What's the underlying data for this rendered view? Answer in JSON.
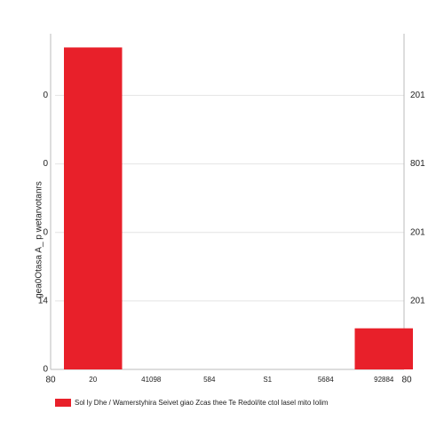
{
  "chart_data": {
    "type": "bar",
    "y_label": "gea0Otasa A_ p wetarvotanrs",
    "categories": [
      "20",
      "41098",
      "584",
      "S1",
      "5684",
      "92884"
    ],
    "x_end_labels": [
      "80",
      "80"
    ],
    "series": [
      {
        "name": "Sol ly Dhe / Wamerstyhira Seivet giao Zcas thee Te Redol/ite ctol lasel mito Iolim",
        "color": "#e8202a",
        "values": [
          4.7,
          0,
          0,
          0,
          0,
          0.6
        ]
      }
    ],
    "ylim": [
      0,
      4.9
    ],
    "yticks": [
      {
        "value": 0,
        "label": "0"
      },
      {
        "value": 1,
        "label": "14"
      },
      {
        "value": 2,
        "label": "0"
      },
      {
        "value": 3,
        "label": "0"
      },
      {
        "value": 4,
        "label": "0"
      }
    ],
    "y2lim": [
      0,
      4.9
    ],
    "y2ticks": [
      {
        "value": 1,
        "label": "201"
      },
      {
        "value": 2,
        "label": "201"
      },
      {
        "value": 3,
        "label": "801"
      },
      {
        "value": 4,
        "label": "201"
      }
    ],
    "grid": true
  }
}
